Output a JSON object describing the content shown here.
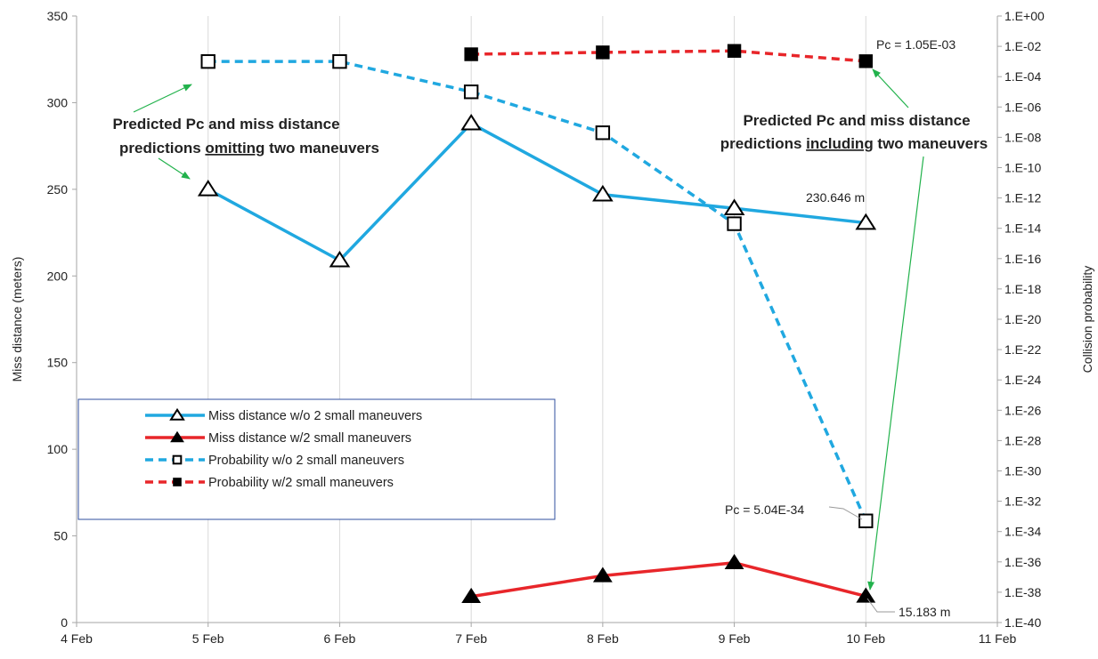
{
  "colors": {
    "miss_wo": "#20a8e0",
    "miss_w": "#e8262a",
    "prob_wo": "#20a8e0",
    "prob_w": "#e8262a",
    "grid": "#d9d9d9",
    "axis": "#a6a6a6",
    "text": "#222222",
    "legend_border": "#2f4f9f",
    "arrow": "#22b24c"
  },
  "chart_data": {
    "type": "line",
    "x_ticks": [
      "4 Feb",
      "5 Feb",
      "6 Feb",
      "7 Feb",
      "8 Feb",
      "9 Feb",
      "10 Feb",
      "11 Feb"
    ],
    "ylabel": "Miss distance (meters)",
    "y2label": "Collision probability",
    "ylim": [
      0,
      350
    ],
    "y_ticks": [
      "0",
      "50",
      "100",
      "150",
      "200",
      "250",
      "300",
      "350"
    ],
    "y2_scale": "log",
    "y2lim_exponent": [
      -40,
      0
    ],
    "y2_ticks": [
      "1.E+00",
      "1.E-02",
      "1.E-04",
      "1.E-06",
      "1.E-08",
      "1.E-10",
      "1.E-12",
      "1.E-14",
      "1.E-16",
      "1.E-18",
      "1.E-20",
      "1.E-22",
      "1.E-24",
      "1.E-26",
      "1.E-28",
      "1.E-30",
      "1.E-32",
      "1.E-34",
      "1.E-36",
      "1.E-38",
      "1.E-40"
    ],
    "grid": "vertical",
    "legend_position": "lower-left",
    "series": [
      {
        "name": "Miss distance w/o 2 small maneuvers",
        "axis": "left",
        "marker": "triangle-open",
        "dashed": false,
        "x": [
          "5 Feb",
          "6 Feb",
          "7 Feb",
          "8 Feb",
          "9 Feb",
          "10 Feb"
        ],
        "values": [
          250,
          209,
          288,
          247,
          239,
          230.646
        ]
      },
      {
        "name": "Miss distance w/2 small maneuvers",
        "axis": "left",
        "marker": "triangle-filled",
        "dashed": false,
        "x": [
          "7 Feb",
          "8 Feb",
          "9 Feb",
          "10 Feb"
        ],
        "values": [
          15,
          27,
          34.5,
          15.183
        ]
      },
      {
        "name": "Probability w/o 2 small maneuvers",
        "axis": "right",
        "marker": "square-open",
        "dashed": true,
        "x": [
          "5 Feb",
          "6 Feb",
          "7 Feb",
          "8 Feb",
          "9 Feb",
          "10 Feb"
        ],
        "values": [
          0.001,
          0.001,
          1e-05,
          2e-08,
          2e-14,
          5.04e-34
        ]
      },
      {
        "name": "Probability w/2 small maneuvers",
        "axis": "right",
        "marker": "square-filled",
        "dashed": true,
        "x": [
          "7 Feb",
          "8 Feb",
          "9 Feb",
          "10 Feb"
        ],
        "values": [
          0.003,
          0.004,
          0.005,
          0.00105
        ]
      }
    ],
    "annotations": {
      "omitting": {
        "line1": "Predicted Pc and miss distance",
        "line2_a": "predictions ",
        "line2_u": "omitting",
        "line2_b": " two maneuvers"
      },
      "including": {
        "line1": "Predicted Pc and miss distance",
        "line2_a": "predictions ",
        "line2_u": "including",
        "line2_b": " two maneuvers"
      },
      "miss_final_wo": "230.646 m",
      "miss_final_w": "15.183 m",
      "pc_final_w": "Pc = 1.05E-03",
      "pc_final_wo": "Pc = 5.04E-34"
    }
  }
}
